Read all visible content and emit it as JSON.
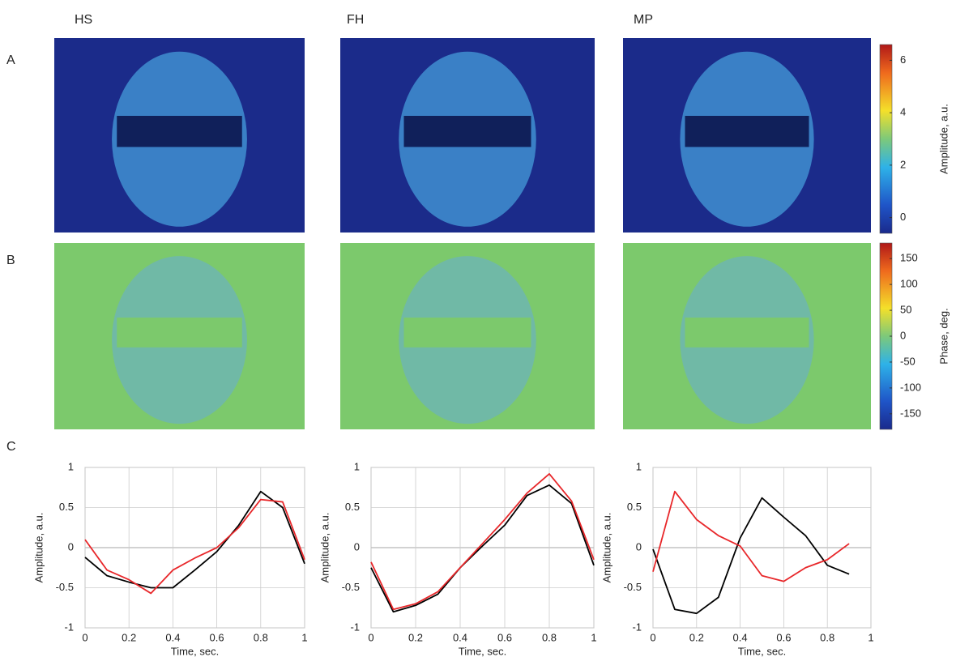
{
  "column_labels": [
    "HS",
    "FH",
    "MP"
  ],
  "row_labels": [
    "A",
    "B",
    "C"
  ],
  "colorbars": [
    {
      "label": "Amplitude, a.u.",
      "lim": [
        -0.6,
        6.6
      ],
      "ticks": [
        0,
        2,
        4,
        6
      ]
    },
    {
      "label": "Phase, deg.",
      "lim": [
        -180,
        180
      ],
      "ticks": [
        -150,
        -100,
        -50,
        0,
        50,
        100,
        150
      ]
    }
  ],
  "chart_data": [
    {
      "type": "line",
      "xlabel": "Time, sec.",
      "ylabel": "Amplitude, a.u.",
      "grid": true,
      "x": [
        0,
        0.1,
        0.2,
        0.3,
        0.4,
        0.5,
        0.6,
        0.7,
        0.8,
        0.9,
        1
      ],
      "series": [
        {
          "color": "#000000",
          "values": [
            -0.12,
            -0.35,
            -0.43,
            -0.5,
            -0.5,
            -0.28,
            -0.05,
            0.28,
            0.7,
            0.5,
            -0.2
          ]
        },
        {
          "color": "#e8272a",
          "values": [
            0.1,
            -0.28,
            -0.4,
            -0.57,
            -0.28,
            -0.13,
            0,
            0.25,
            0.6,
            0.57,
            -0.15
          ]
        }
      ],
      "xlim": [
        0,
        1
      ],
      "ylim": [
        -1,
        1
      ],
      "xticks": [
        0,
        0.2,
        0.4,
        0.6,
        0.8,
        1
      ],
      "yticks": [
        -1,
        -0.5,
        0,
        0.5,
        1
      ]
    },
    {
      "type": "line",
      "xlabel": "Time, sec.",
      "ylabel": "Amplitude, a.u.",
      "grid": true,
      "x": [
        0,
        0.1,
        0.2,
        0.3,
        0.4,
        0.5,
        0.6,
        0.7,
        0.8,
        0.9,
        1
      ],
      "series": [
        {
          "color": "#000000",
          "values": [
            -0.25,
            -0.8,
            -0.72,
            -0.58,
            -0.25,
            0.02,
            0.28,
            0.65,
            0.78,
            0.55,
            -0.22
          ]
        },
        {
          "color": "#e8272a",
          "values": [
            -0.18,
            -0.77,
            -0.7,
            -0.55,
            -0.25,
            0.05,
            0.35,
            0.68,
            0.92,
            0.58,
            -0.15
          ]
        }
      ],
      "xlim": [
        0,
        1
      ],
      "ylim": [
        -1,
        1
      ],
      "xticks": [
        0,
        0.2,
        0.4,
        0.6,
        0.8,
        1
      ],
      "yticks": [
        -1,
        -0.5,
        0,
        0.5,
        1
      ]
    },
    {
      "type": "line",
      "xlabel": "Time, sec.",
      "ylabel": "Amplitude, a.u.",
      "grid": true,
      "x": [
        0,
        0.1,
        0.2,
        0.3,
        0.4,
        0.5,
        0.6,
        0.7,
        0.8,
        0.9
      ],
      "series": [
        {
          "color": "#000000",
          "values": [
            -0.02,
            -0.77,
            -0.82,
            -0.62,
            0.12,
            0.62,
            0.38,
            0.15,
            -0.22,
            -0.33
          ]
        },
        {
          "color": "#e8272a",
          "values": [
            -0.3,
            0.7,
            0.35,
            0.15,
            0.02,
            -0.35,
            -0.42,
            -0.25,
            -0.15,
            0.05
          ]
        }
      ],
      "xlim": [
        0,
        1
      ],
      "ylim": [
        -1,
        1
      ],
      "xticks": [
        0,
        0.2,
        0.4,
        0.6,
        0.8,
        1
      ],
      "yticks": [
        -1,
        -0.5,
        0,
        0.5,
        1
      ]
    }
  ]
}
